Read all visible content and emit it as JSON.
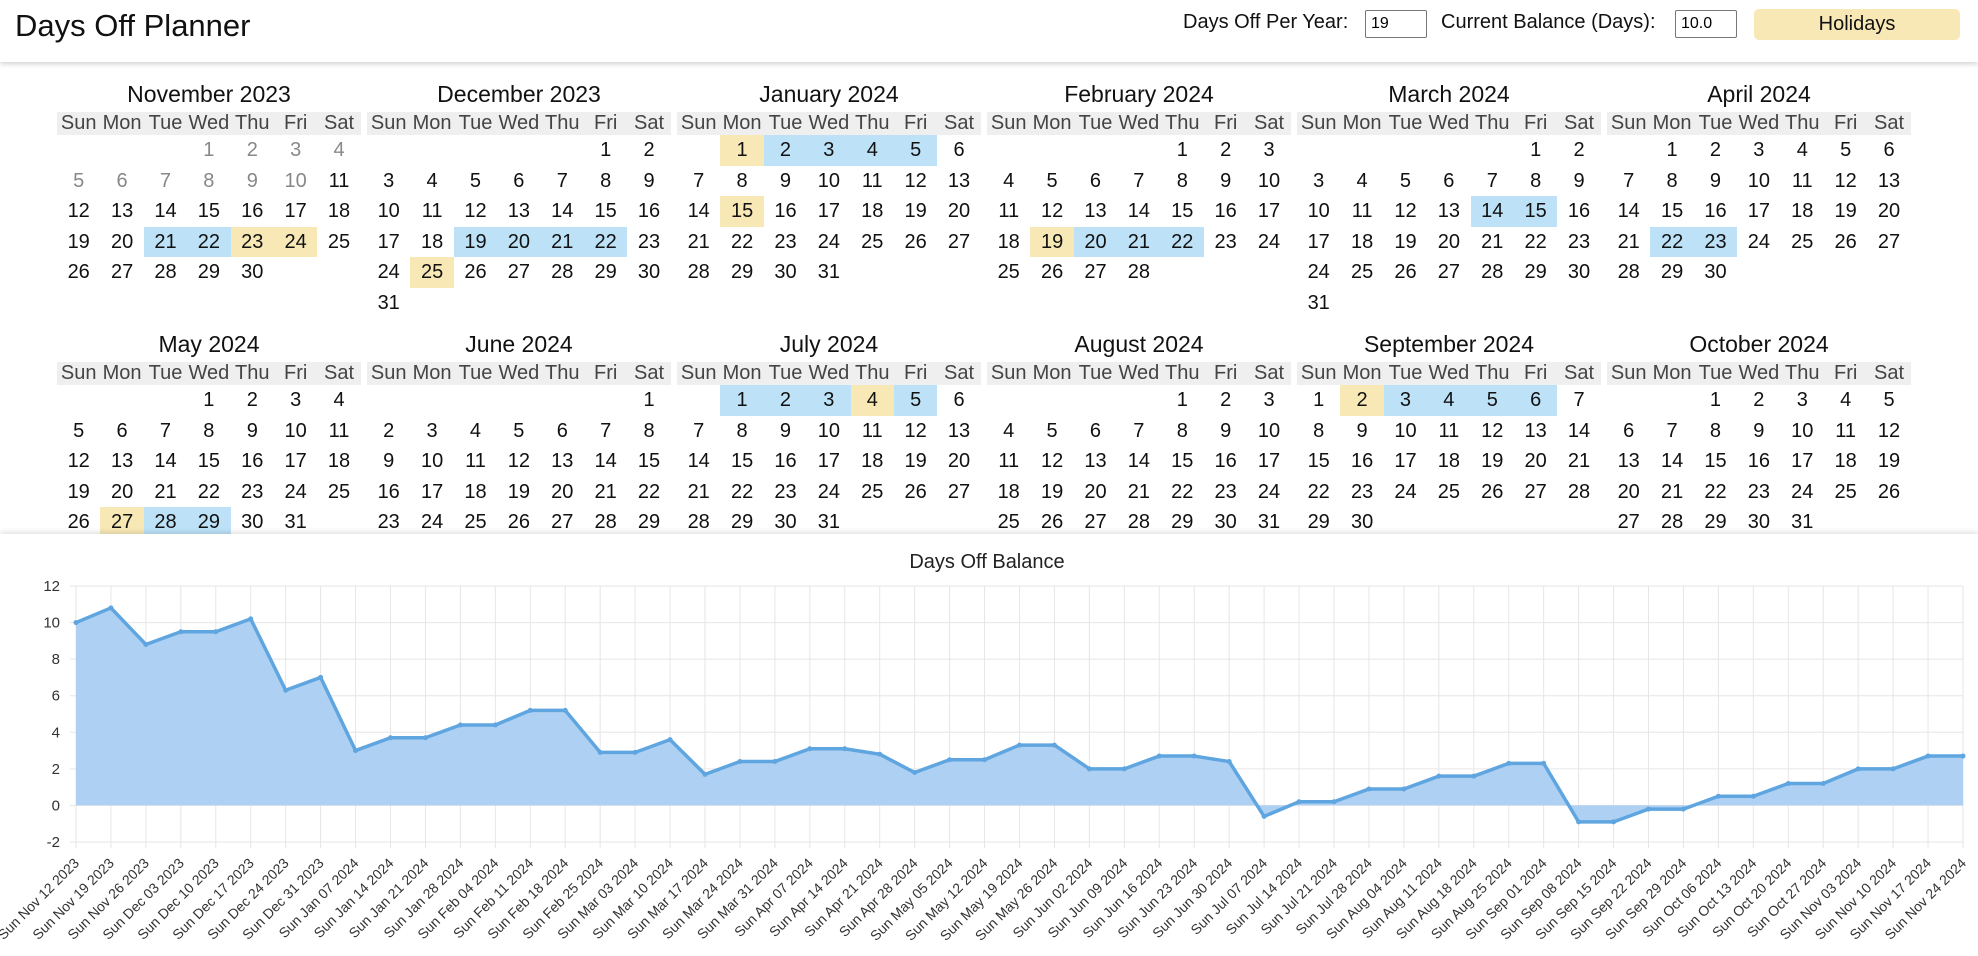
{
  "app": {
    "title": "Days Off Planner"
  },
  "controls": {
    "days_off_label": "Days Off Per Year:",
    "days_off_value": "19",
    "balance_label": "Current Balance (Days):",
    "balance_value": "10.0",
    "holidays_button": "Holidays"
  },
  "colors": {
    "vacation": "#bde2f8",
    "holiday": "#f8e8b6",
    "line": "#5fa5e0",
    "fill": "#aacdf2"
  },
  "weekday_headers": [
    "Sun",
    "Mon",
    "Tue",
    "Wed",
    "Thu",
    "Fri",
    "Sat"
  ],
  "months": [
    {
      "title": "November 2023",
      "first_weekday": 3,
      "days": 30,
      "past_until": 10,
      "vacation": [
        21,
        22
      ],
      "holiday": [
        23,
        24
      ]
    },
    {
      "title": "December 2023",
      "first_weekday": 5,
      "days": 31,
      "past_until": 0,
      "vacation": [
        19,
        20,
        21,
        22
      ],
      "holiday": [
        25
      ]
    },
    {
      "title": "January 2024",
      "first_weekday": 1,
      "days": 31,
      "past_until": 0,
      "vacation": [
        2,
        3,
        4,
        5
      ],
      "holiday": [
        1,
        15
      ]
    },
    {
      "title": "February 2024",
      "first_weekday": 4,
      "days": 28,
      "past_until": 0,
      "vacation": [
        20,
        21,
        22
      ],
      "holiday": [
        19
      ]
    },
    {
      "title": "March 2024",
      "first_weekday": 5,
      "days": 31,
      "past_until": 0,
      "vacation": [
        14,
        15
      ],
      "holiday": []
    },
    {
      "title": "April 2024",
      "first_weekday": 1,
      "days": 30,
      "past_until": 0,
      "vacation": [
        22,
        23
      ],
      "holiday": []
    },
    {
      "title": "May 2024",
      "first_weekday": 3,
      "days": 31,
      "past_until": 0,
      "vacation": [
        28,
        29
      ],
      "holiday": [
        27
      ]
    },
    {
      "title": "June 2024",
      "first_weekday": 6,
      "days": 30,
      "past_until": 0,
      "vacation": [],
      "holiday": []
    },
    {
      "title": "July 2024",
      "first_weekday": 1,
      "days": 31,
      "past_until": 0,
      "vacation": [
        1,
        2,
        3,
        5
      ],
      "holiday": [
        4
      ]
    },
    {
      "title": "August 2024",
      "first_weekday": 4,
      "days": 31,
      "past_until": 0,
      "vacation": [],
      "holiday": []
    },
    {
      "title": "September 2024",
      "first_weekday": 0,
      "days": 30,
      "past_until": 0,
      "vacation": [
        3,
        4,
        5,
        6
      ],
      "holiday": [
        2
      ]
    },
    {
      "title": "October 2024",
      "first_weekday": 2,
      "days": 31,
      "past_until": 0,
      "vacation": [],
      "holiday": []
    }
  ],
  "chart_data": {
    "type": "area",
    "title": "Days Off Balance",
    "xlabel": "",
    "ylabel": "",
    "ylim": [
      -2,
      12
    ],
    "yticks": [
      -2,
      0,
      2,
      4,
      6,
      8,
      10,
      12
    ],
    "grid": true,
    "legend": "none",
    "x": [
      "Sun Nov 12 2023",
      "Sun Nov 19 2023",
      "Sun Nov 26 2023",
      "Sun Dec 03 2023",
      "Sun Dec 10 2023",
      "Sun Dec 17 2023",
      "Sun Dec 24 2023",
      "Sun Dec 31 2023",
      "Sun Jan 07 2024",
      "Sun Jan 14 2024",
      "Sun Jan 21 2024",
      "Sun Jan 28 2024",
      "Sun Feb 04 2024",
      "Sun Feb 11 2024",
      "Sun Feb 18 2024",
      "Sun Feb 25 2024",
      "Sun Mar 03 2024",
      "Sun Mar 10 2024",
      "Sun Mar 17 2024",
      "Sun Mar 24 2024",
      "Sun Mar 31 2024",
      "Sun Apr 07 2024",
      "Sun Apr 14 2024",
      "Sun Apr 21 2024",
      "Sun Apr 28 2024",
      "Sun May 05 2024",
      "Sun May 12 2024",
      "Sun May 19 2024",
      "Sun May 26 2024",
      "Sun Jun 02 2024",
      "Sun Jun 09 2024",
      "Sun Jun 16 2024",
      "Sun Jun 23 2024",
      "Sun Jun 30 2024",
      "Sun Jul 07 2024",
      "Sun Jul 14 2024",
      "Sun Jul 21 2024",
      "Sun Jul 28 2024",
      "Sun Aug 04 2024",
      "Sun Aug 11 2024",
      "Sun Aug 18 2024",
      "Sun Aug 25 2024",
      "Sun Sep 01 2024",
      "Sun Sep 08 2024",
      "Sun Sep 15 2024",
      "Sun Sep 22 2024",
      "Sun Sep 29 2024",
      "Sun Oct 06 2024",
      "Sun Oct 13 2024",
      "Sun Oct 20 2024",
      "Sun Oct 27 2024",
      "Sun Nov 03 2024",
      "Sun Nov 10 2024",
      "Sun Nov 17 2024",
      "Sun Nov 24 2024"
    ],
    "series": [
      {
        "values": [
          10.0,
          10.8,
          8.8,
          9.5,
          9.5,
          10.2,
          6.3,
          7.0,
          3.0,
          3.7,
          3.7,
          4.4,
          4.4,
          5.2,
          5.2,
          2.9,
          2.9,
          3.6,
          1.7,
          2.4,
          2.4,
          3.1,
          3.1,
          2.8,
          1.8,
          2.5,
          2.5,
          3.3,
          3.3,
          2.0,
          2.0,
          2.7,
          2.7,
          2.4,
          -0.6,
          0.2,
          0.2,
          0.9,
          0.9,
          1.6,
          1.6,
          2.3,
          2.3,
          -0.9,
          -0.9,
          -0.2,
          -0.2,
          0.5,
          0.5,
          1.2,
          1.2,
          2.0,
          2.0,
          2.7,
          2.7
        ]
      }
    ]
  }
}
